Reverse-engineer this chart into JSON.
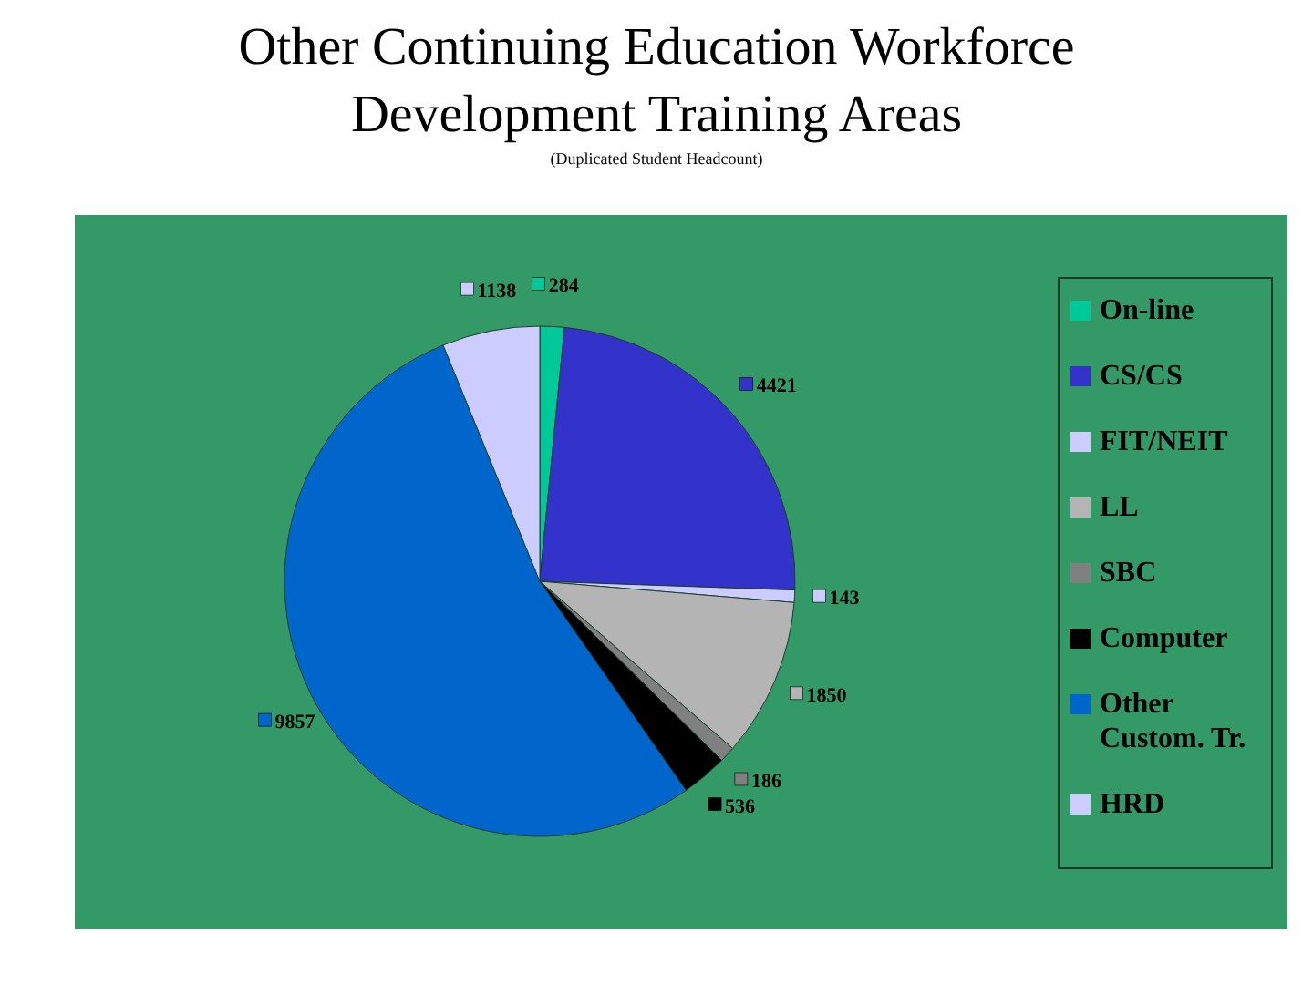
{
  "chart_data": {
    "type": "pie",
    "title": "Other Continuing Education Workforce Development Training Areas",
    "subtitle": "(Duplicated Student Headcount)",
    "categories": [
      "On-line",
      "CS/CS",
      "FIT/NEIT",
      "LL",
      "SBC",
      "Computer",
      "Other Custom. Tr.",
      "HRD"
    ],
    "values": [
      284,
      4421,
      143,
      1850,
      186,
      536,
      9857,
      1138
    ],
    "colors": [
      "#00c896",
      "#3333cc",
      "#ccccff",
      "#b4b4b4",
      "#808080",
      "#000000",
      "#0066cc",
      "#ccccff"
    ],
    "data_labels": true,
    "legend": "right"
  }
}
